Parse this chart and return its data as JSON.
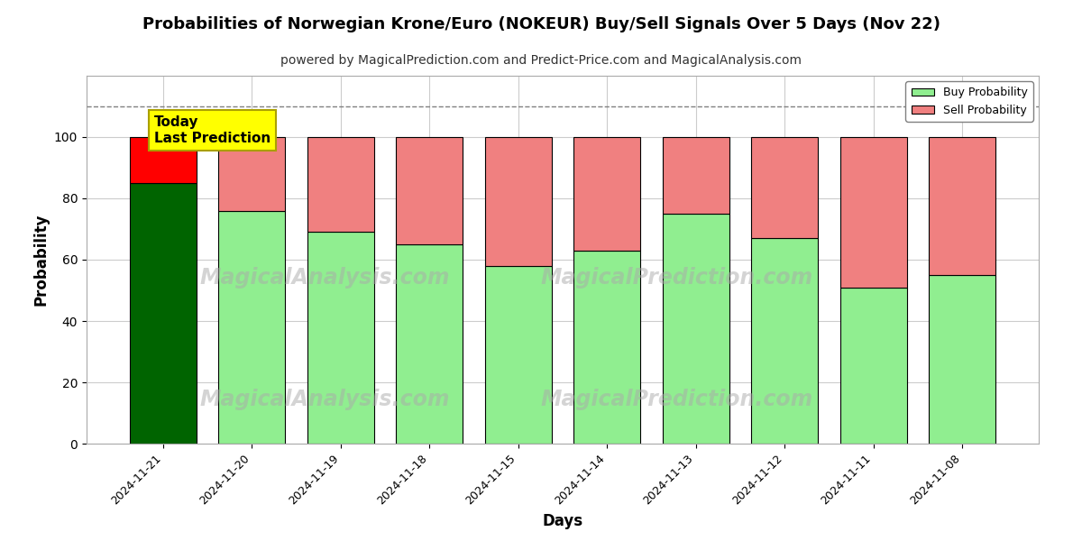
{
  "title": "Probabilities of Norwegian Krone/Euro (NOKEUR) Buy/Sell Signals Over 5 Days (Nov 22)",
  "subtitle": "powered by MagicalPrediction.com and Predict-Price.com and MagicalAnalysis.com",
  "xlabel": "Days",
  "ylabel": "Probability",
  "categories": [
    "2024-11-21",
    "2024-11-20",
    "2024-11-19",
    "2024-11-18",
    "2024-11-15",
    "2024-11-14",
    "2024-11-13",
    "2024-11-12",
    "2024-11-11",
    "2024-11-08"
  ],
  "buy_values": [
    85,
    76,
    69,
    65,
    58,
    63,
    75,
    67,
    51,
    55
  ],
  "sell_values": [
    15,
    24,
    31,
    35,
    42,
    37,
    25,
    33,
    49,
    45
  ],
  "today_buy_color": "#006400",
  "today_sell_color": "#FF0000",
  "buy_color": "#90EE90",
  "sell_color": "#F08080",
  "bar_edge_color": "#000000",
  "today_annotation_bg": "#FFFF00",
  "today_annotation_text": "Today\nLast Prediction",
  "legend_buy_label": "Buy Probability",
  "legend_sell_label": "Sell Probability",
  "ylim": [
    0,
    120
  ],
  "yticks": [
    0,
    20,
    40,
    60,
    80,
    100
  ],
  "dashed_line_y": 110,
  "background_color": "#ffffff",
  "grid_color": "#cccccc",
  "title_fontsize": 13,
  "subtitle_fontsize": 10
}
